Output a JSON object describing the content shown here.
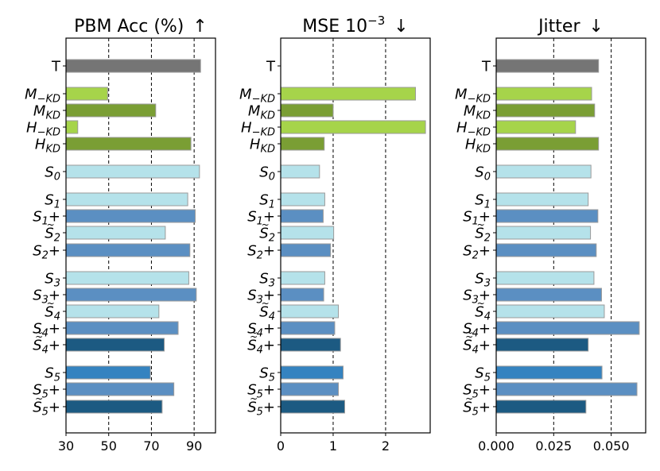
{
  "chart_data": [
    {
      "type": "bar",
      "orientation": "horizontal",
      "title": "PBM Acc (%)",
      "title_arrow": "↑",
      "xlim": [
        30,
        100
      ],
      "xticks": [
        30,
        50,
        70,
        90
      ],
      "xtick_labels": [
        "30",
        "50",
        "70",
        "90"
      ],
      "vlines": [
        50,
        70,
        90
      ],
      "labels": [
        "T",
        "M_-KD",
        "M_KD",
        "H_-KD",
        "H_KD",
        "S_0",
        "S_1",
        "S_1+",
        "S~_2",
        "S_2+",
        "S_3",
        "S_3+",
        "S~_4",
        "S_4+",
        "S~~_4+",
        "S_5",
        "S_5+",
        "S~_5+"
      ],
      "values": [
        93,
        49.5,
        72,
        35.5,
        88.5,
        92.5,
        87,
        90.5,
        76.5,
        88,
        87.5,
        91,
        73.5,
        82.5,
        76,
        69.5,
        80.5,
        75
      ]
    },
    {
      "type": "bar",
      "orientation": "horizontal",
      "title": "MSE 10",
      "title_sup": "−3",
      "title_arrow": "↓",
      "xlim": [
        0,
        2.85
      ],
      "xticks": [
        0,
        1,
        2
      ],
      "xtick_labels": [
        "0",
        "1",
        "2"
      ],
      "vlines": [
        1,
        2
      ],
      "labels": [
        "T",
        "M_-KD",
        "M_KD",
        "H_-KD",
        "H_KD",
        "S_0",
        "S_1",
        "S_1+",
        "S~_2",
        "S_2+",
        "S_3",
        "S_3+",
        "S~_4",
        "S_4+",
        "S~~_4+",
        "S_5",
        "S_5+",
        "S~_5+"
      ],
      "values": [
        0,
        2.57,
        1.0,
        2.76,
        0.83,
        0.74,
        0.84,
        0.81,
        1.01,
        0.95,
        0.84,
        0.82,
        1.1,
        1.03,
        1.14,
        1.19,
        1.1,
        1.22
      ]
    },
    {
      "type": "bar",
      "orientation": "horizontal",
      "title": "Jitter",
      "title_arrow": "↓",
      "xlim": [
        0,
        0.065
      ],
      "xticks": [
        0,
        0.025,
        0.05
      ],
      "xtick_labels": [
        "0.000",
        "0.025",
        "0.050"
      ],
      "vlines": [
        0.025,
        0.05
      ],
      "labels": [
        "T",
        "M_-KD",
        "M_KD",
        "H_-KD",
        "H_KD",
        "S_0",
        "S_1",
        "S_1+",
        "S~_2",
        "S_2+",
        "S_3",
        "S_3+",
        "S~_4",
        "S_4+",
        "S~~_4+",
        "S_5",
        "S_5+",
        "S~_5+"
      ],
      "values": [
        0.0445,
        0.0415,
        0.0428,
        0.0345,
        0.0445,
        0.0412,
        0.04,
        0.0442,
        0.041,
        0.0435,
        0.0425,
        0.0458,
        0.047,
        0.0622,
        0.04,
        0.046,
        0.0612,
        0.039
      ]
    }
  ],
  "colors": {
    "T": "#757575",
    "M_-KD": "#a6d44a",
    "M_KD": "#7a9e34",
    "H_-KD": "#a6d44a",
    "H_KD": "#7a9e34",
    "S_0": "#b5e2ea",
    "S_1": "#b5e2ea",
    "S_1+": "#5b8fc2",
    "S~_2": "#b5e2ea",
    "S_2+": "#5b8fc2",
    "S_3": "#b5e2ea",
    "S_3+": "#5b8fc2",
    "S~_4": "#b5e2ea",
    "S_4+": "#5b8fc2",
    "S~~_4+": "#1c5a82",
    "S_5": "#3583c0",
    "S_5+": "#5b8fc2",
    "S~_5+": "#1c5a82"
  }
}
